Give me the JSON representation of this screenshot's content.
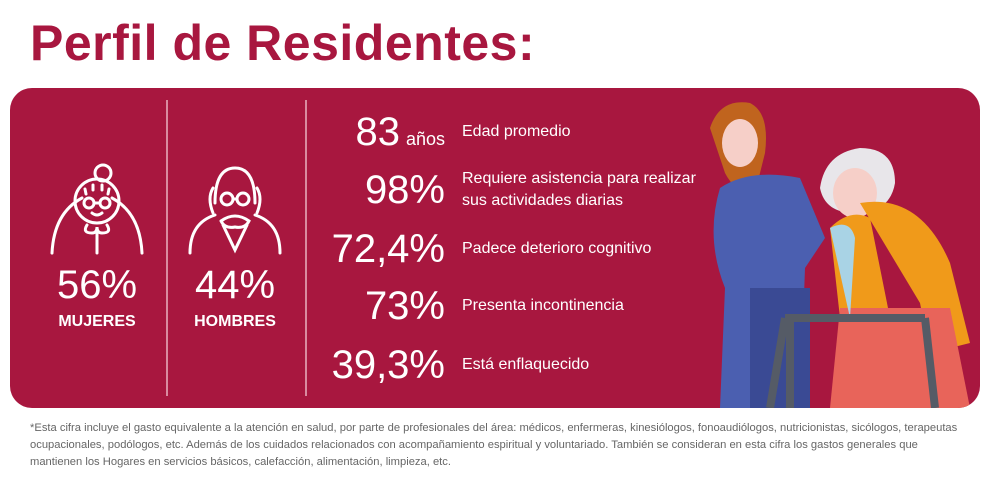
{
  "title": "Perfil de Residentes:",
  "gender": [
    {
      "percent": "56%",
      "label": "MUJERES",
      "icon": "grandmother-icon"
    },
    {
      "percent": "44%",
      "label": "HOMBRES",
      "icon": "grandfather-icon"
    }
  ],
  "stats": [
    {
      "value": "83",
      "unit": "años",
      "label": "Edad promedio"
    },
    {
      "value": "98%",
      "label": "Requiere asistencia para realizar sus actividades diarias"
    },
    {
      "value": "72,4%",
      "label": "Padece deterioro cognitivo"
    },
    {
      "value": "73%",
      "label": "Presenta incontinencia"
    },
    {
      "value": "39,3%",
      "label": "Está enflaquecido"
    }
  ],
  "footnote": "*Esta cifra incluye el gasto equivalente a la atención en salud, por parte de profesionales del área: médicos, enfermeras, kinesiólogos, fonoaudiólogos, nutricionistas, sicólogos, terapeutas ocupacionales, podólogos, etc. Además de los cuidados relacionados con acompañamiento espiritual y voluntariado. También se consideran en esta cifra los gastos generales que mantienen los Hogares en servicios básicos, calefacción, alimentación, limpieza, etc.",
  "colors": {
    "brand": "#a8173f",
    "text": "#ffffff"
  }
}
